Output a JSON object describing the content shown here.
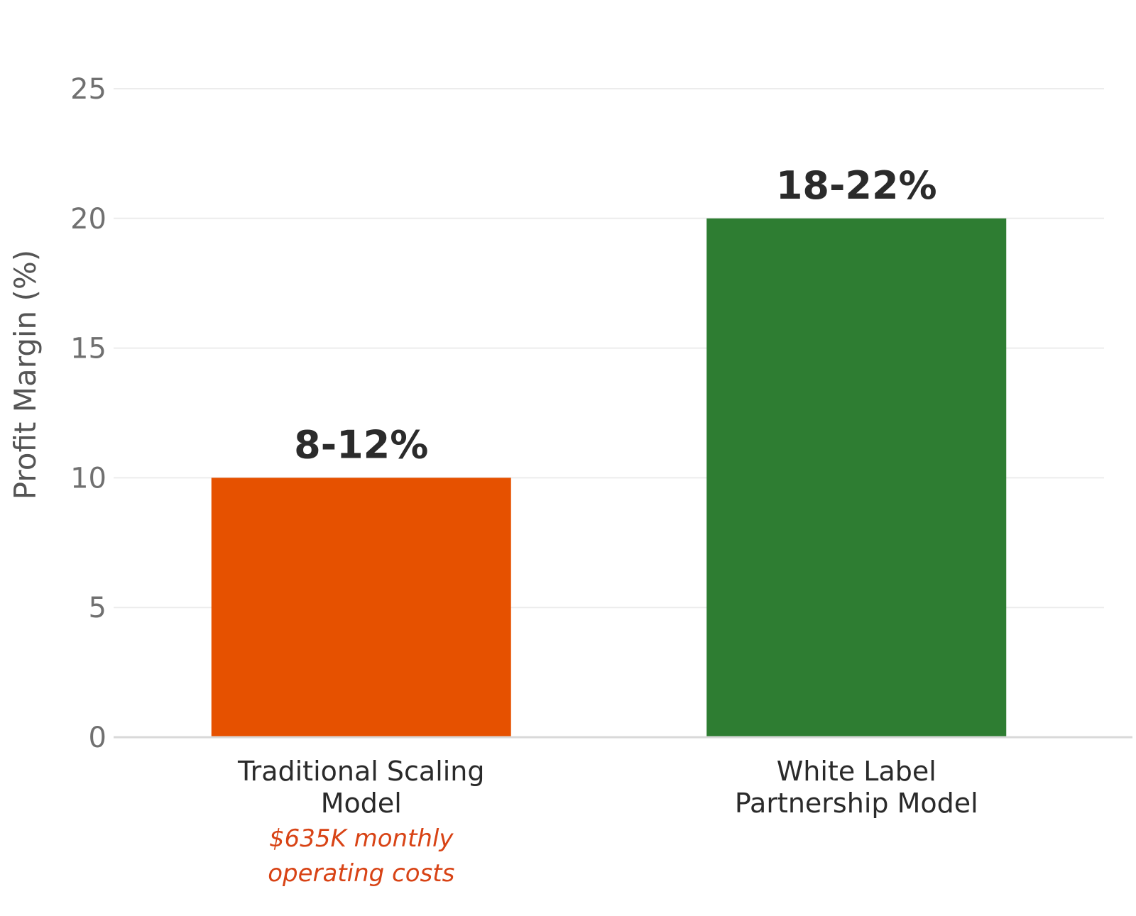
{
  "chart_data": {
    "type": "bar",
    "categories": [
      [
        "Traditional Scaling",
        "Model"
      ],
      [
        "White Label",
        "Partnership Model"
      ]
    ],
    "values": [
      10,
      20
    ],
    "value_labels": [
      "8-12%",
      "18-22%"
    ],
    "bar_colors": [
      "#e65100",
      "#2e7d32"
    ],
    "notes": [
      [
        "$635K monthly",
        "operating costs"
      ],
      []
    ],
    "note_color": "#d84315",
    "title": "",
    "xlabel": "",
    "ylabel": "Profit Margin (%)",
    "ylim": [
      0,
      25
    ],
    "yticks": [
      0,
      5,
      10,
      15,
      20,
      25
    ],
    "grid": true
  }
}
